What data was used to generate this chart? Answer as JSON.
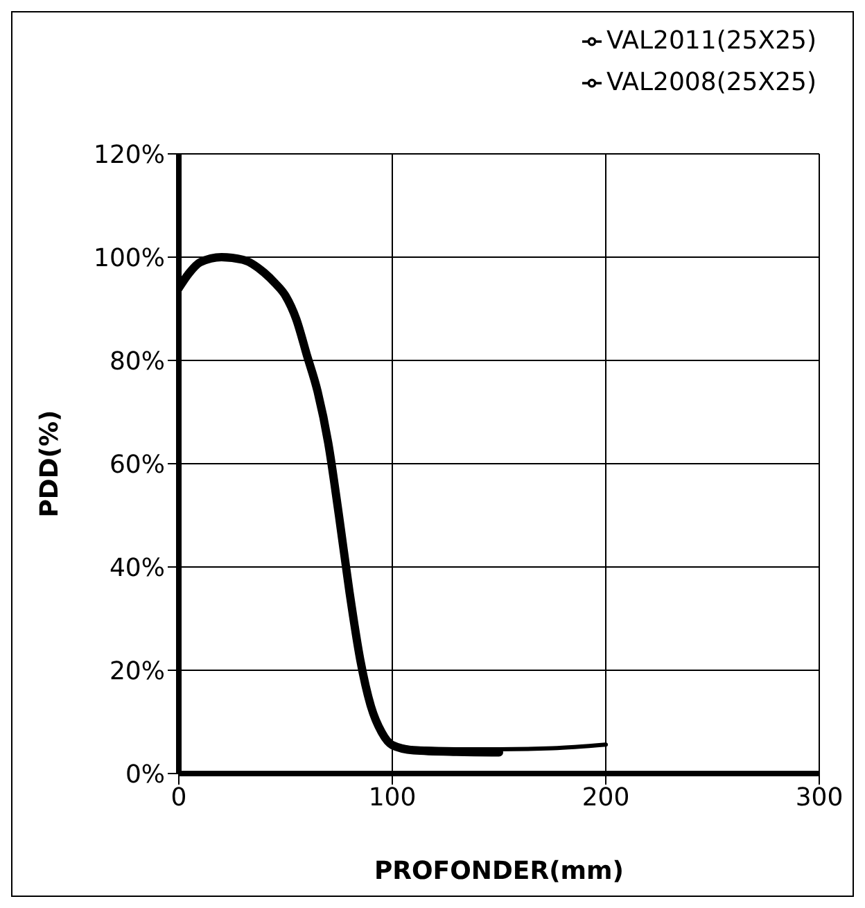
{
  "chart_data": {
    "type": "line",
    "xlabel": "PROFONDER(mm)",
    "ylabel": "PDD(%)",
    "xlim": [
      0,
      300
    ],
    "xticks": [
      0,
      100,
      200,
      300
    ],
    "ylim": [
      0,
      120
    ],
    "yticks": [
      {
        "value": 0,
        "label": "0%"
      },
      {
        "value": 20,
        "label": "20%"
      },
      {
        "value": 40,
        "label": "40%"
      },
      {
        "value": 60,
        "label": "60%"
      },
      {
        "value": 80,
        "label": "80%"
      },
      {
        "value": 100,
        "label": "100%"
      },
      {
        "value": 120,
        "label": "120%"
      }
    ],
    "grid": true,
    "legend": "top right",
    "marker": "none",
    "line_style": "solid",
    "series": [
      {
        "name": "VAL2011(25X25)",
        "color": "#000000",
        "x": [
          0,
          5,
          10,
          20,
          30,
          40,
          45,
          50,
          55,
          60,
          65,
          70,
          75,
          80,
          85,
          90,
          95,
          100,
          110,
          130,
          150,
          175,
          200
        ],
        "values": [
          94,
          97,
          99,
          100,
          99.5,
          97,
          95,
          92.5,
          88,
          81,
          74,
          64,
          50,
          35,
          22,
          13,
          8,
          5.8,
          4.9,
          4.7,
          4.7,
          4.9,
          5.6
        ]
      },
      {
        "name": "VAL2008(25X25)",
        "color": "#000000",
        "x": [
          0,
          5,
          10,
          20,
          30,
          40,
          45,
          50,
          55,
          60,
          65,
          70,
          75,
          80,
          85,
          90,
          95,
          100,
          110,
          130,
          150
        ],
        "values": [
          94,
          97,
          99,
          100,
          99.5,
          97,
          95,
          92.5,
          88,
          81,
          74,
          64,
          50,
          35,
          22,
          13,
          8,
          5.5,
          4.5,
          4.2,
          4.1
        ]
      }
    ]
  }
}
